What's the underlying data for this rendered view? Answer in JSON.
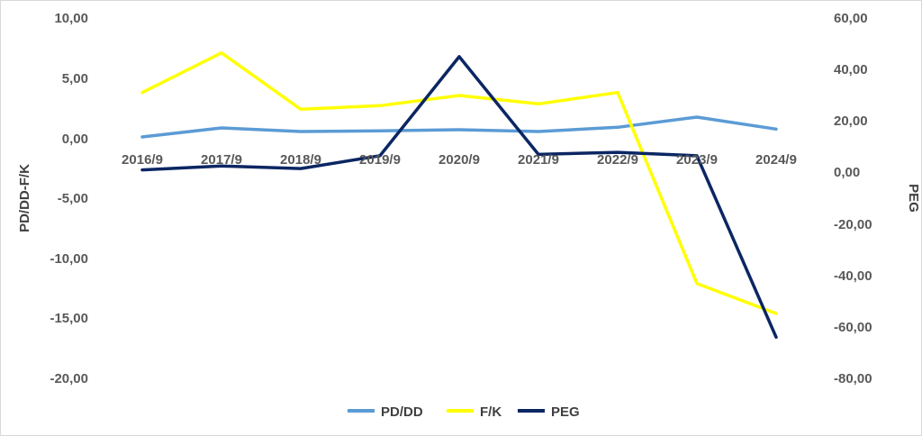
{
  "chart_data": {
    "type": "line",
    "categories": [
      "2016/9",
      "2017/9",
      "2018/9",
      "2019/9",
      "2020/9",
      "2021/9",
      "2022/9",
      "2023/9",
      "2024/9"
    ],
    "series": [
      {
        "name": "PD/DD",
        "axis": "left",
        "color": "#5B9BD5",
        "values": [
          0.1,
          0.85,
          0.55,
          0.6,
          0.7,
          0.55,
          0.9,
          1.75,
          0.75
        ]
      },
      {
        "name": "F/K",
        "axis": "left",
        "color": "#FFFF00",
        "values": [
          3.8,
          7.1,
          2.4,
          2.7,
          3.55,
          2.85,
          3.8,
          -12.1,
          -14.6
        ]
      },
      {
        "name": "PEG",
        "axis": "right",
        "color": "#0B2663",
        "values": [
          1.0,
          2.5,
          1.5,
          6.5,
          45.0,
          7.0,
          7.8,
          6.5,
          -64.0
        ]
      }
    ],
    "ylabel": "PD/DD-F/K",
    "y2label": "PEG",
    "ylim": [
      -20,
      10
    ],
    "y2lim": [
      -80,
      60
    ],
    "yticks": [
      "10,00",
      "5,00",
      "0,00",
      "-5,00",
      "-10,00",
      "-15,00",
      "-20,00"
    ],
    "y2ticks": [
      "60,00",
      "40,00",
      "20,00",
      "0,00",
      "-20,00",
      "-40,00",
      "-60,00",
      "-80,00"
    ],
    "grid": false,
    "legend": "bottom"
  }
}
